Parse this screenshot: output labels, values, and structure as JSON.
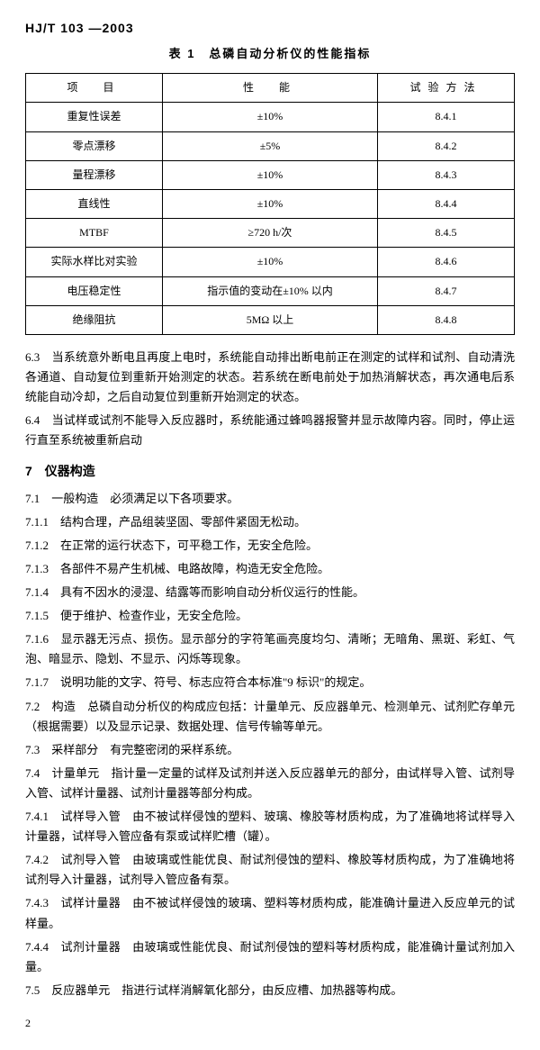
{
  "header": "HJ/T 103 —2003",
  "table": {
    "caption": "表 1　总磷自动分析仪的性能指标",
    "columns": [
      "项　目",
      "性　能",
      "试验方法"
    ],
    "rows": [
      [
        "重复性误差",
        "±10%",
        "8.4.1"
      ],
      [
        "零点漂移",
        "±5%",
        "8.4.2"
      ],
      [
        "量程漂移",
        "±10%",
        "8.4.3"
      ],
      [
        "直线性",
        "±10%",
        "8.4.4"
      ],
      [
        "MTBF",
        "≥720 h/次",
        "8.4.5"
      ],
      [
        "实际水样比对实验",
        "±10%",
        "8.4.6"
      ],
      [
        "电压稳定性",
        "指示值的变动在±10% 以内",
        "8.4.7"
      ],
      [
        "绝缘阻抗",
        "5MΩ 以上",
        "8.4.8"
      ]
    ]
  },
  "p63": "6.3　当系统意外断电且再度上电时，系统能自动排出断电前正在测定的试样和试剂、自动清洗各通道、自动复位到重新开始测定的状态。若系统在断电前处于加热消解状态，再次通电后系统能自动冷却，之后自动复位到重新开始测定的状态。",
  "p64": "6.4　当试样或试剂不能导入反应器时，系统能通过蜂鸣器报警并显示故障内容。同时，停止运行直至系统被重新启动",
  "s7": "7　仪器构造",
  "p71": "7.1　一般构造　必须满足以下各项要求。",
  "p711": "7.1.1　结构合理，产品组装坚固、零部件紧固无松动。",
  "p712": "7.1.2　在正常的运行状态下，可平稳工作，无安全危险。",
  "p713": "7.1.3　各部件不易产生机械、电路故障，构造无安全危险。",
  "p714": "7.1.4　具有不因水的浸湿、结露等而影响自动分析仪运行的性能。",
  "p715": "7.1.5　便于维护、检查作业，无安全危险。",
  "p716": "7.1.6　显示器无污点、损伤。显示部分的字符笔画亮度均匀、清晰；无暗角、黑斑、彩虹、气泡、暗显示、隐划、不显示、闪烁等现象。",
  "p717": "7.1.7　说明功能的文字、符号、标志应符合本标准\"9 标识\"的规定。",
  "p72": "7.2　构造　总磷自动分析仪的构成应包括：计量单元、反应器单元、检测单元、试剂贮存单元（根据需要）以及显示记录、数据处理、信号传输等单元。",
  "p73": "7.3　采样部分　有完整密闭的采样系统。",
  "p74": "7.4　计量单元　指计量一定量的试样及试剂并送入反应器单元的部分，由试样导入管、试剂导入管、试样计量器、试剂计量器等部分构成。",
  "p741": "7.4.1　试样导入管　由不被试样侵蚀的塑料、玻璃、橡胶等材质构成，为了准确地将试样导入计量器，试样导入管应备有泵或试样贮槽（罐）。",
  "p742": "7.4.2　试剂导入管　由玻璃或性能优良、耐试剂侵蚀的塑料、橡胶等材质构成，为了准确地将试剂导入计量器，试剂导入管应备有泵。",
  "p743": "7.4.3　试样计量器　由不被试样侵蚀的玻璃、塑料等材质构成，能准确计量进入反应单元的试样量。",
  "p744": "7.4.4　试剂计量器　由玻璃或性能优良、耐试剂侵蚀的塑料等材质构成，能准确计量试剂加入量。",
  "p75": "7.5　反应器单元　指进行试样消解氧化部分，由反应槽、加热器等构成。",
  "pageNum": "2"
}
